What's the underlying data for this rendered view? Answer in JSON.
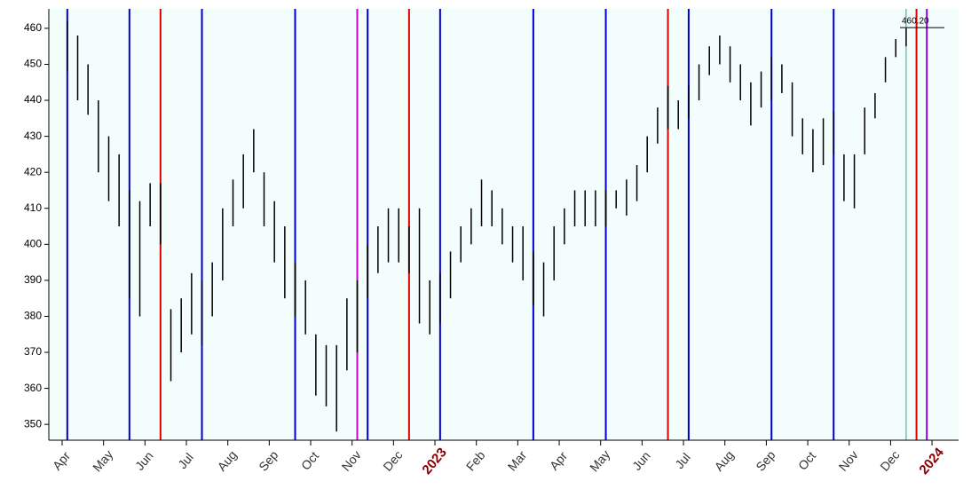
{
  "chart_data": {
    "type": "range-bar",
    "ylim": [
      345.6,
      465.4
    ],
    "yticks": [
      350,
      360,
      370,
      380,
      390,
      400,
      410,
      420,
      430,
      440,
      450,
      460
    ],
    "bar_color": "#000000",
    "background": "#f2fdfc",
    "categories": [
      "Apr",
      "May",
      "Jun",
      "Jul",
      "Aug",
      "Sep",
      "Oct",
      "Nov",
      "Dec",
      "2023",
      "Feb",
      "Mar",
      "Apr",
      "May",
      "Jun",
      "Jul",
      "Aug",
      "Sep",
      "Oct",
      "Nov",
      "Dec",
      "2024"
    ],
    "periods": [
      {
        "bars": [
          {
            "low": 448,
            "high": 462,
            "line": "#0000cc"
          },
          {
            "low": 440,
            "high": 458
          },
          {
            "low": 436,
            "high": 450
          },
          {
            "low": 420,
            "high": 440
          }
        ]
      },
      {
        "bars": [
          {
            "low": 412,
            "high": 430
          },
          {
            "low": 405,
            "high": 425
          },
          {
            "low": 385,
            "high": 415,
            "line": "#0000cc"
          },
          {
            "low": 380,
            "high": 412
          }
        ]
      },
      {
        "bars": [
          {
            "low": 405,
            "high": 417
          },
          {
            "low": 400,
            "high": 417,
            "line": "#dd0000"
          },
          {
            "low": 362,
            "high": 382
          },
          {
            "low": 370,
            "high": 385
          }
        ]
      },
      {
        "bars": [
          {
            "low": 375,
            "high": 392
          },
          {
            "low": 372,
            "high": 390,
            "line": "#0000cc"
          },
          {
            "low": 380,
            "high": 395
          },
          {
            "low": 390,
            "high": 410
          }
        ]
      },
      {
        "bars": [
          {
            "low": 405,
            "high": 418
          },
          {
            "low": 410,
            "high": 425
          },
          {
            "low": 420,
            "high": 432
          },
          {
            "low": 405,
            "high": 420
          }
        ]
      },
      {
        "bars": [
          {
            "low": 395,
            "high": 412
          },
          {
            "low": 385,
            "high": 405
          },
          {
            "low": 380,
            "high": 395,
            "line": "#0000cc"
          },
          {
            "low": 375,
            "high": 390
          }
        ]
      },
      {
        "bars": [
          {
            "low": 358,
            "high": 375
          },
          {
            "low": 355,
            "high": 372
          },
          {
            "low": 348,
            "high": 372
          },
          {
            "low": 365,
            "high": 385
          }
        ]
      },
      {
        "bars": [
          {
            "low": 370,
            "high": 390,
            "line": "#cc00cc"
          },
          {
            "low": 385,
            "high": 400,
            "line": "#0000cc"
          },
          {
            "low": 392,
            "high": 405
          },
          {
            "low": 395,
            "high": 410
          }
        ]
      },
      {
        "bars": [
          {
            "low": 395,
            "high": 410
          },
          {
            "low": 392,
            "high": 405,
            "line": "#dd0000"
          },
          {
            "low": 378,
            "high": 410
          },
          {
            "low": 375,
            "high": 390
          }
        ]
      },
      {
        "bars": [
          {
            "low": 378,
            "high": 392,
            "line": "#0000cc"
          },
          {
            "low": 385,
            "high": 398
          },
          {
            "low": 395,
            "high": 405
          },
          {
            "low": 400,
            "high": 410
          }
        ]
      },
      {
        "bars": [
          {
            "low": 405,
            "high": 418
          },
          {
            "low": 405,
            "high": 415
          },
          {
            "low": 400,
            "high": 410
          },
          {
            "low": 395,
            "high": 405
          }
        ]
      },
      {
        "bars": [
          {
            "low": 390,
            "high": 405
          },
          {
            "low": 383,
            "high": 398,
            "line": "#0000cc"
          },
          {
            "low": 380,
            "high": 395
          },
          {
            "low": 390,
            "high": 405
          }
        ]
      },
      {
        "bars": [
          {
            "low": 400,
            "high": 410
          },
          {
            "low": 405,
            "high": 415
          },
          {
            "low": 405,
            "high": 415
          },
          {
            "low": 405,
            "high": 415
          }
        ]
      },
      {
        "bars": [
          {
            "low": 405,
            "high": 415,
            "line": "#0000cc"
          },
          {
            "low": 410,
            "high": 415
          },
          {
            "low": 408,
            "high": 418
          },
          {
            "low": 412,
            "high": 422
          }
        ]
      },
      {
        "bars": [
          {
            "low": 420,
            "high": 430
          },
          {
            "low": 428,
            "high": 438
          },
          {
            "low": 432,
            "high": 444,
            "line": "#dd0000"
          },
          {
            "low": 432,
            "high": 440
          }
        ]
      },
      {
        "bars": [
          {
            "low": 435,
            "high": 444,
            "line": "#0000cc"
          },
          {
            "low": 440,
            "high": 450
          },
          {
            "low": 447,
            "high": 455
          },
          {
            "low": 450,
            "high": 458
          }
        ]
      },
      {
        "bars": [
          {
            "low": 445,
            "high": 455
          },
          {
            "low": 440,
            "high": 450
          },
          {
            "low": 433,
            "high": 445
          },
          {
            "low": 438,
            "high": 448
          }
        ]
      },
      {
        "bars": [
          {
            "low": 440,
            "high": 452,
            "line": "#0000cc"
          },
          {
            "low": 442,
            "high": 450
          },
          {
            "low": 430,
            "high": 445
          },
          {
            "low": 425,
            "high": 435
          }
        ]
      },
      {
        "bars": [
          {
            "low": 420,
            "high": 432
          },
          {
            "low": 422,
            "high": 435
          },
          {
            "low": 425,
            "high": 437,
            "line": "#0000cc"
          },
          {
            "low": 412,
            "high": 425
          }
        ]
      },
      {
        "bars": [
          {
            "low": 410,
            "high": 425
          },
          {
            "low": 425,
            "high": 438
          },
          {
            "low": 435,
            "high": 442
          },
          {
            "low": 445,
            "high": 452
          }
        ]
      },
      {
        "bars": [
          {
            "low": 452,
            "high": 457
          },
          {
            "low": 455,
            "high": 460,
            "line": "#4a9a8a"
          },
          {
            "low": null,
            "high": null,
            "line": "#dd0000"
          },
          {
            "low": null,
            "high": null,
            "line": "#8800dd"
          }
        ]
      },
      {
        "bars": []
      }
    ],
    "last_value": 460.2,
    "last_label": "460.20"
  }
}
